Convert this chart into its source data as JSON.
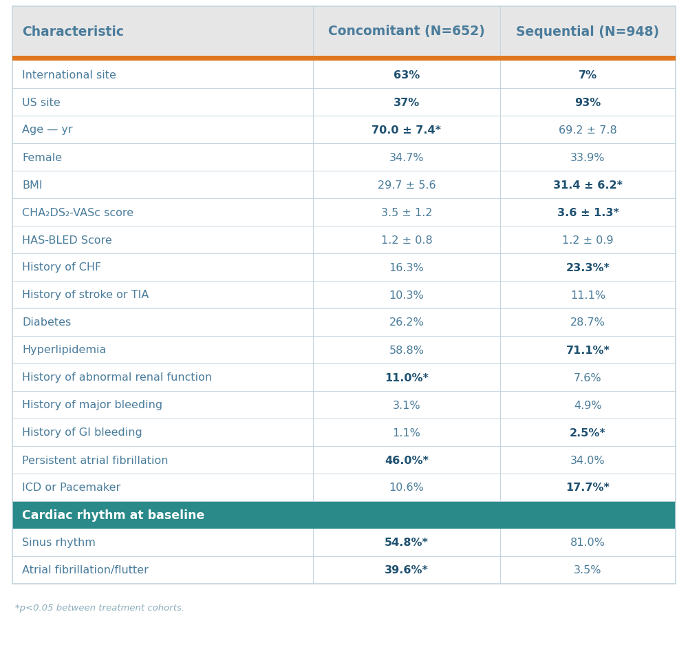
{
  "footnote": "*p<0.05 between treatment cohorts.",
  "header": [
    "Characteristic",
    "Concomitant (N=652)",
    "Sequential (N=948)"
  ],
  "header_bg": "#e6e6e6",
  "header_text_color": "#4a7c9b",
  "orange_bar_color": "#e07820",
  "teal_section_color": "#2a8a8a",
  "teal_text_color": "#ffffff",
  "divider_color": "#c5d5de",
  "text_color_normal": "#4a7c9b",
  "text_color_bold": "#1e5070",
  "col_splits": [
    0.455,
    0.725
  ],
  "rows": [
    {
      "char": "International site",
      "col1": "63%",
      "col2": "7%",
      "col1_bold": true,
      "col2_bold": true,
      "section_header": false
    },
    {
      "char": "US site",
      "col1": "37%",
      "col2": "93%",
      "col1_bold": true,
      "col2_bold": true,
      "section_header": false
    },
    {
      "char": "Age — yr",
      "col1": "70.0 ± 7.4*",
      "col2": "69.2 ± 7.8",
      "col1_bold": true,
      "col2_bold": false,
      "section_header": false
    },
    {
      "char": "Female",
      "col1": "34.7%",
      "col2": "33.9%",
      "col1_bold": false,
      "col2_bold": false,
      "section_header": false
    },
    {
      "char": "BMI",
      "col1": "29.7 ± 5.6",
      "col2": "31.4 ± 6.2*",
      "col1_bold": false,
      "col2_bold": true,
      "section_header": false
    },
    {
      "char": "CHA₂DS₂-VASc score",
      "col1": "3.5 ± 1.2",
      "col2": "3.6 ± 1.3*",
      "col1_bold": false,
      "col2_bold": true,
      "section_header": false
    },
    {
      "char": "HAS-BLED Score",
      "col1": "1.2 ± 0.8",
      "col2": "1.2 ± 0.9",
      "col1_bold": false,
      "col2_bold": false,
      "section_header": false
    },
    {
      "char": "History of CHF",
      "col1": "16.3%",
      "col2": "23.3%*",
      "col1_bold": false,
      "col2_bold": true,
      "section_header": false
    },
    {
      "char": "History of stroke or TIA",
      "col1": "10.3%",
      "col2": "11.1%",
      "col1_bold": false,
      "col2_bold": false,
      "section_header": false
    },
    {
      "char": "Diabetes",
      "col1": "26.2%",
      "col2": "28.7%",
      "col1_bold": false,
      "col2_bold": false,
      "section_header": false
    },
    {
      "char": "Hyperlipidemia",
      "col1": "58.8%",
      "col2": "71.1%*",
      "col1_bold": false,
      "col2_bold": true,
      "section_header": false
    },
    {
      "char": "History of abnormal renal function",
      "col1": "11.0%*",
      "col2": "7.6%",
      "col1_bold": true,
      "col2_bold": false,
      "section_header": false
    },
    {
      "char": "History of major bleeding",
      "col1": "3.1%",
      "col2": "4.9%",
      "col1_bold": false,
      "col2_bold": false,
      "section_header": false
    },
    {
      "char": "History of GI bleeding",
      "col1": "1.1%",
      "col2": "2.5%*",
      "col1_bold": false,
      "col2_bold": true,
      "section_header": false
    },
    {
      "char": "Persistent atrial fibrillation",
      "col1": "46.0%*",
      "col2": "34.0%",
      "col1_bold": true,
      "col2_bold": false,
      "section_header": false
    },
    {
      "char": "ICD or Pacemaker",
      "col1": "10.6%",
      "col2": "17.7%*",
      "col1_bold": false,
      "col2_bold": true,
      "section_header": false
    },
    {
      "char": "Cardiac rhythm at baseline",
      "col1": "",
      "col2": "",
      "col1_bold": false,
      "col2_bold": false,
      "section_header": true
    },
    {
      "char": "Sinus rhythm",
      "col1": "54.8%*",
      "col2": "81.0%",
      "col1_bold": true,
      "col2_bold": false,
      "section_header": false
    },
    {
      "char": "Atrial fibrillation/flutter",
      "col1": "39.6%*",
      "col2": "3.5%",
      "col1_bold": true,
      "col2_bold": false,
      "section_header": false
    }
  ]
}
